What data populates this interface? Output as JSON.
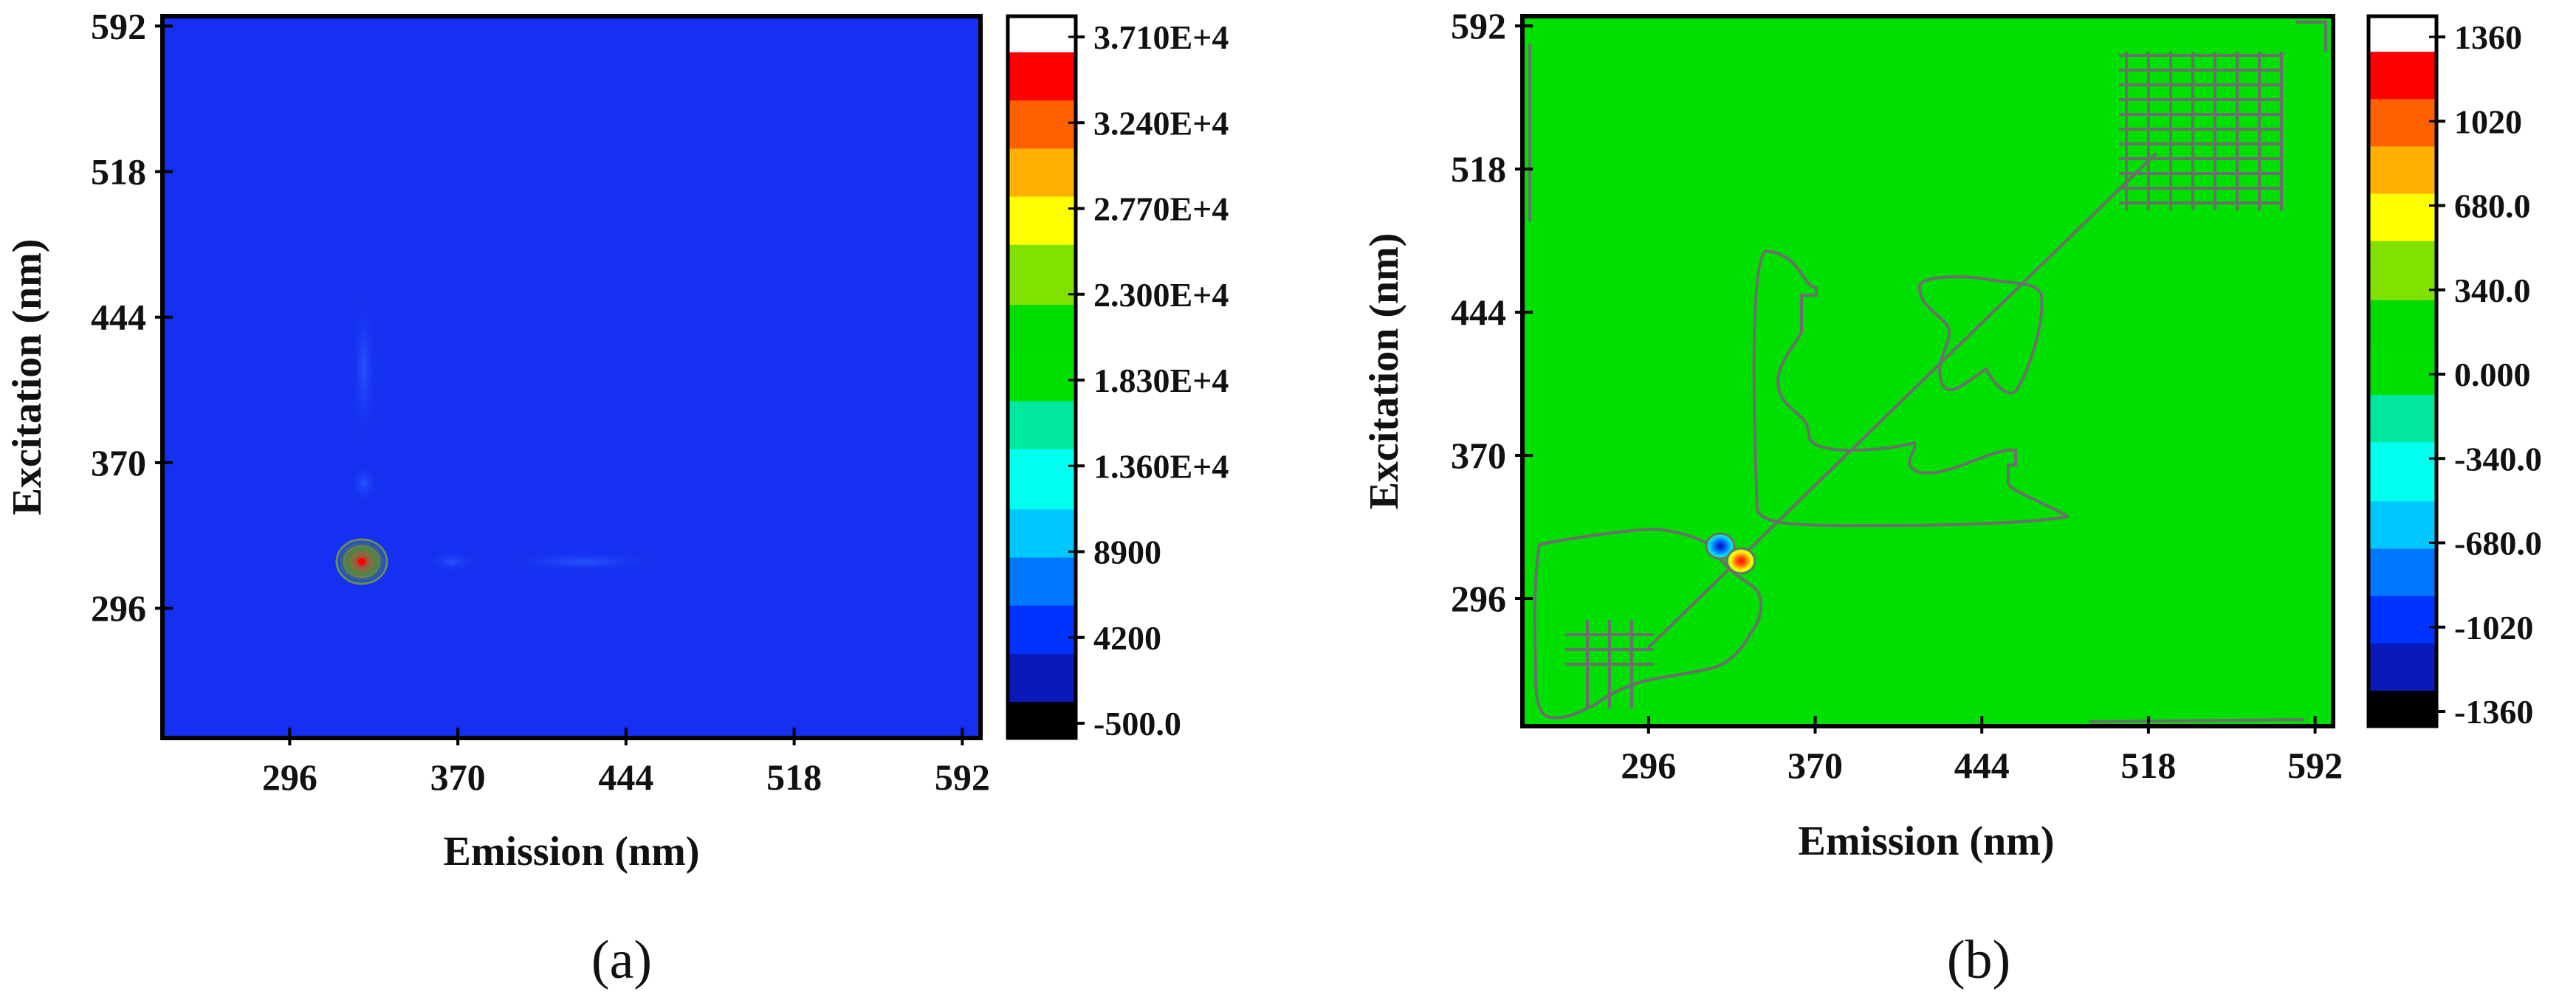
{
  "chart_data": [
    {
      "type": "heatmap",
      "panel_label": "(a)",
      "xlabel": "Emission (nm)",
      "ylabel": "Excitation (nm)",
      "xticks": [
        296,
        370,
        444,
        518,
        592
      ],
      "yticks": [
        296,
        370,
        444,
        518,
        592
      ],
      "xlim": [
        240,
        600
      ],
      "ylim": [
        230,
        597
      ],
      "colorbar": {
        "min": -500,
        "max": 37100,
        "tick_labels": [
          "3.710E+4",
          "3.240E+4",
          "2.770E+4",
          "2.300E+4",
          "1.830E+4",
          "1.360E+4",
          "8900",
          "4200",
          "-500.0"
        ]
      },
      "background_level": 2300,
      "features": [
        {
          "kind": "peak",
          "em": 324,
          "ex": 321,
          "value": 37100
        },
        {
          "kind": "faint-band",
          "em_range": [
            308,
            314
          ],
          "ex_range": [
            395,
            465
          ]
        },
        {
          "kind": "faint-band",
          "em_range": [
            308,
            314
          ],
          "ex_range": [
            352,
            368
          ]
        },
        {
          "kind": "faint-band",
          "em_range": [
            355,
            380
          ],
          "ex_range": [
            318,
            326
          ]
        },
        {
          "kind": "faint-band",
          "em_range": [
            395,
            460
          ],
          "ex_range": [
            318,
            326
          ]
        }
      ]
    },
    {
      "type": "heatmap",
      "panel_label": "(b)",
      "xlabel": "Emission (nm)",
      "ylabel": "Excitation (nm)",
      "xticks": [
        296,
        370,
        444,
        518,
        592
      ],
      "yticks": [
        296,
        370,
        444,
        518,
        592
      ],
      "xlim": [
        240,
        600
      ],
      "ylim": [
        230,
        597
      ],
      "colorbar": {
        "min": -1360,
        "max": 1360,
        "tick_labels": [
          "1360",
          "1020",
          "680.0",
          "340.0",
          "0.000",
          "-340.0",
          "-680.0",
          "-1020",
          "-1360"
        ]
      },
      "background_level": 0,
      "features": [
        {
          "kind": "negative-peak",
          "em": 325,
          "ex": 327,
          "value": -1360
        },
        {
          "kind": "positive-peak",
          "em": 333,
          "ex": 321,
          "value": 1360
        },
        {
          "kind": "contour-diagonal",
          "from": [
            300,
            300
          ],
          "to": [
            520,
            520
          ]
        }
      ]
    }
  ],
  "colormap": [
    "#000000",
    "#0a1ab8",
    "#0033ff",
    "#0077ff",
    "#00c8ff",
    "#00ffee",
    "#00e8a0",
    "#00e000",
    "#00dd00",
    "#80e000",
    "#ffff00",
    "#ffb000",
    "#ff6000",
    "#ff0000",
    "#ffffff"
  ]
}
